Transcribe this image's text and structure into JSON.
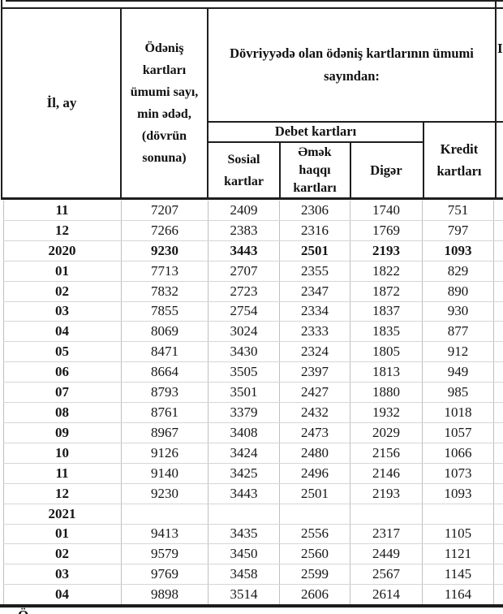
{
  "header": {
    "col_year_month": "İl, ay",
    "col_total": "Ödəniş\nkartları\nümumi sayı,\nmin ədəd,\n(dövrün\nsonuna)",
    "col_group": "Dövriyyədə olan ödəniş kartlarının ümumi\nsayından:",
    "col_debit_group": "Debet kartları",
    "col_social": "Sosial\nkartlar",
    "col_salary": "Əmək\nhaqqı\nkartları",
    "col_other": "Digər",
    "col_credit": "Kredit\nkartları",
    "partial_right_letter": "I"
  },
  "footer": {
    "partial_bottom_letter": "Ö"
  },
  "colors": {
    "header_border": "#1e1e1e",
    "grid_vertical": "#bfbfbf",
    "grid_horizontal": "#d6d6d6",
    "text": "#141414"
  },
  "rows": [
    {
      "label": "11",
      "total": "7207",
      "social": "2409",
      "salary": "2306",
      "other": "1740",
      "credit": "751",
      "bold": false
    },
    {
      "label": "12",
      "total": "7266",
      "social": "2383",
      "salary": "2316",
      "other": "1769",
      "credit": "797",
      "bold": false
    },
    {
      "label": "2020",
      "total": "9230",
      "social": "3443",
      "salary": "2501",
      "other": "2193",
      "credit": "1093",
      "bold": true
    },
    {
      "label": "01",
      "total": "7713",
      "social": "2707",
      "salary": "2355",
      "other": "1822",
      "credit": "829",
      "bold": false
    },
    {
      "label": "02",
      "total": "7832",
      "social": "2723",
      "salary": "2347",
      "other": "1872",
      "credit": "890",
      "bold": false
    },
    {
      "label": "03",
      "total": "7855",
      "social": "2754",
      "salary": "2334",
      "other": "1837",
      "credit": "930",
      "bold": false
    },
    {
      "label": "04",
      "total": "8069",
      "social": "3024",
      "salary": "2333",
      "other": "1835",
      "credit": "877",
      "bold": false
    },
    {
      "label": "05",
      "total": "8471",
      "social": "3430",
      "salary": "2324",
      "other": "1805",
      "credit": "912",
      "bold": false
    },
    {
      "label": "06",
      "total": "8664",
      "social": "3505",
      "salary": "2397",
      "other": "1813",
      "credit": "949",
      "bold": false
    },
    {
      "label": "07",
      "total": "8793",
      "social": "3501",
      "salary": "2427",
      "other": "1880",
      "credit": "985",
      "bold": false
    },
    {
      "label": "08",
      "total": "8761",
      "social": "3379",
      "salary": "2432",
      "other": "1932",
      "credit": "1018",
      "bold": false
    },
    {
      "label": "09",
      "total": "8967",
      "social": "3408",
      "salary": "2473",
      "other": "2029",
      "credit": "1057",
      "bold": false
    },
    {
      "label": "10",
      "total": "9126",
      "social": "3424",
      "salary": "2480",
      "other": "2156",
      "credit": "1066",
      "bold": false
    },
    {
      "label": "11",
      "total": "9140",
      "social": "3425",
      "salary": "2496",
      "other": "2146",
      "credit": "1073",
      "bold": false
    },
    {
      "label": "12",
      "total": "9230",
      "social": "3443",
      "salary": "2501",
      "other": "2193",
      "credit": "1093",
      "bold": false
    },
    {
      "label": "2021",
      "total": "",
      "social": "",
      "salary": "",
      "other": "",
      "credit": "",
      "bold": true
    },
    {
      "label": "01",
      "total": "9413",
      "social": "3435",
      "salary": "2556",
      "other": "2317",
      "credit": "1105",
      "bold": false
    },
    {
      "label": "02",
      "total": "9579",
      "social": "3450",
      "salary": "2560",
      "other": "2449",
      "credit": "1121",
      "bold": false
    },
    {
      "label": "03",
      "total": "9769",
      "social": "3458",
      "salary": "2599",
      "other": "2567",
      "credit": "1145",
      "bold": false
    },
    {
      "label": "04",
      "total": "9898",
      "social": "3514",
      "salary": "2606",
      "other": "2614",
      "credit": "1164",
      "bold": false
    }
  ]
}
